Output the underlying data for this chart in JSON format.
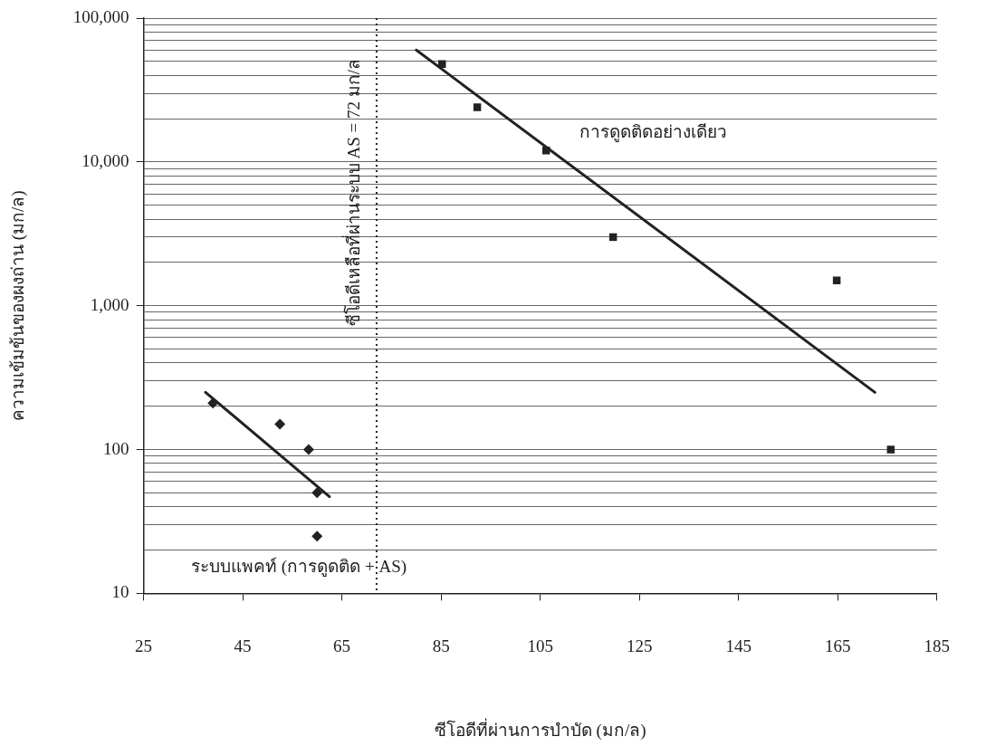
{
  "chart_data": {
    "type": "scatter",
    "xlabel": "ซีโอดีที่ผ่านการบำบัด (มก/ล)",
    "ylabel": "ความเข้มข้นของผงถ่าน (มก/ล)",
    "log": "y",
    "xlim": [
      25,
      185
    ],
    "xticks": [
      25,
      45,
      65,
      85,
      105,
      125,
      145,
      165,
      185
    ],
    "ylim": [
      10,
      100000
    ],
    "yticks": [
      {
        "value": 10,
        "label": "10"
      },
      {
        "value": 20,
        "label": null
      },
      {
        "value": 30,
        "label": null
      },
      {
        "value": 40,
        "label": null
      },
      {
        "value": 50,
        "label": null
      },
      {
        "value": 60,
        "label": null
      },
      {
        "value": 70,
        "label": null
      },
      {
        "value": 80,
        "label": null
      },
      {
        "value": 90,
        "label": null
      },
      {
        "value": 100,
        "label": "100"
      },
      {
        "value": 200,
        "label": null
      },
      {
        "value": 300,
        "label": null
      },
      {
        "value": 400,
        "label": null
      },
      {
        "value": 500,
        "label": null
      },
      {
        "value": 600,
        "label": null
      },
      {
        "value": 700,
        "label": null
      },
      {
        "value": 800,
        "label": null
      },
      {
        "value": 900,
        "label": null
      },
      {
        "value": 1000,
        "label": "1,000"
      },
      {
        "value": 2000,
        "label": null
      },
      {
        "value": 3000,
        "label": null
      },
      {
        "value": 4000,
        "label": null
      },
      {
        "value": 5000,
        "label": null
      },
      {
        "value": 6000,
        "label": null
      },
      {
        "value": 7000,
        "label": null
      },
      {
        "value": 8000,
        "label": null
      },
      {
        "value": 9000,
        "label": null
      },
      {
        "value": 10000,
        "label": "10,000"
      },
      {
        "value": 20000,
        "label": null
      },
      {
        "value": 30000,
        "label": null
      },
      {
        "value": 40000,
        "label": null
      },
      {
        "value": 50000,
        "label": null
      },
      {
        "value": 60000,
        "label": null
      },
      {
        "value": 70000,
        "label": null
      },
      {
        "value": 80000,
        "label": null
      },
      {
        "value": 90000,
        "label": null
      },
      {
        "value": 100000,
        "label": "100,000"
      }
    ],
    "grid": "y",
    "legend": false,
    "series": [
      {
        "name": "ระบบแพคท์ (การดูดติด + AS)",
        "marker": "diamond",
        "color": "#222222",
        "x": [
          39,
          52.5,
          58.3,
          60,
          60
        ],
        "values": [
          210,
          150,
          100,
          50,
          25
        ]
      },
      {
        "type": "line",
        "marker": "none",
        "color": "#222222",
        "x": [
          37.5,
          62.5
        ],
        "values": [
          250,
          47
        ]
      },
      {
        "name": "การดูดติดอย่างเดียว",
        "marker": "square",
        "color": "#222222",
        "x": [
          85.2,
          92.3,
          106.2,
          119.7,
          164.8,
          175.7
        ],
        "values": [
          48000,
          24000,
          12000,
          3000,
          1500,
          100
        ]
      },
      {
        "type": "line",
        "marker": "none",
        "color": "#222222",
        "x": [
          80,
          172.5
        ],
        "values": [
          60000,
          250
        ]
      }
    ],
    "ref_lines": [
      {
        "axis": "x",
        "value": 72,
        "label": "ซีโอดีเหลือที่ผ่านระบบ AS = 72 มก/ล",
        "line_style": "dotted",
        "color": "#222222"
      }
    ]
  }
}
